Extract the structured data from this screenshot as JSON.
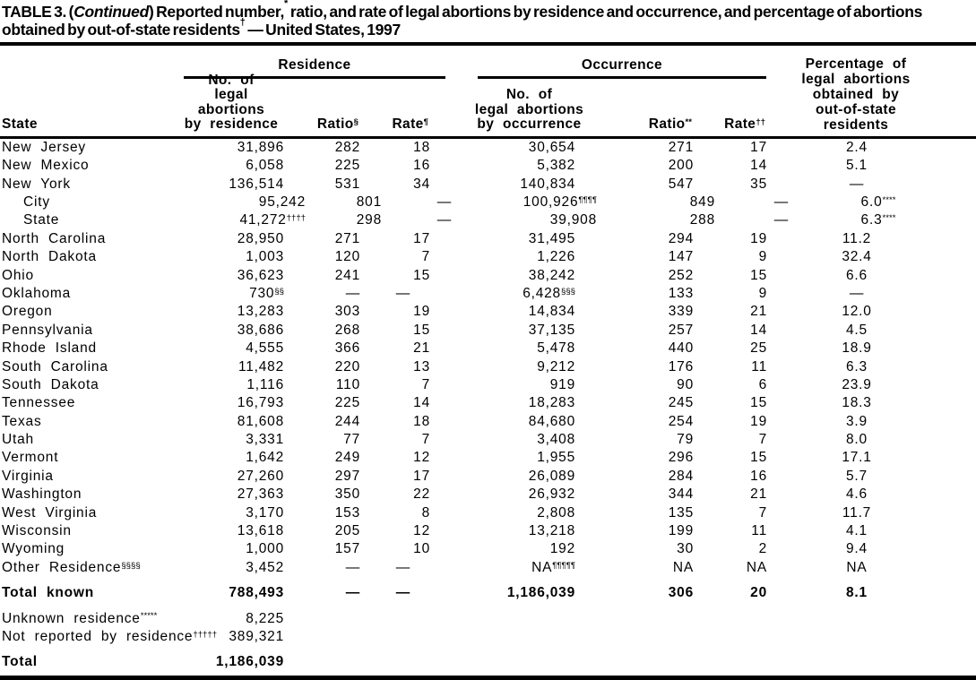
{
  "colors": {
    "background": "#ffffff",
    "text": "#000000",
    "rule": "#000000"
  },
  "title": {
    "prefix": "TABLE 3. (",
    "continued": "Continued",
    "after_continued": ") Reported number,",
    "sup1": "*",
    "line1_rest": " ratio, and rate of legal abortions by residence and occurrence, and percentage of abortions",
    "line2_start": "obtained by out-of-state residents",
    "sup2": "†",
    "line2_rest": " — United States, 1997"
  },
  "header": {
    "state": "State",
    "residence_group": "Residence",
    "occurrence_group": "Occurrence",
    "res_no_lines": [
      "No. of",
      "legal abortions",
      "by residence"
    ],
    "res_ratio": {
      "t": "Ratio",
      "sup": "§"
    },
    "res_rate": {
      "t": "Rate",
      "sup": "¶"
    },
    "occ_no_lines": [
      "No. of",
      "legal abortions",
      "by occurrence"
    ],
    "occ_ratio": {
      "t": "Ratio",
      "sup": "**"
    },
    "occ_rate": {
      "t": "Rate",
      "sup": "††"
    },
    "pct_lines": [
      "Percentage of",
      "legal abortions",
      "obtained by",
      "out-of-state",
      "residents"
    ]
  },
  "rows": [
    {
      "label": "New Jersey",
      "res_no": "31,896",
      "res_ratio": "282",
      "res_rate": "18",
      "occ_no": "30,654",
      "occ_ratio": "271",
      "occ_rate": "17",
      "pct": "2.4"
    },
    {
      "label": "New Mexico",
      "res_no": "6,058",
      "res_ratio": "225",
      "res_rate": "16",
      "occ_no": "5,382",
      "occ_ratio": "200",
      "occ_rate": "14",
      "pct": "5.1"
    },
    {
      "label": "New York",
      "res_no": "136,514",
      "res_ratio": "531",
      "res_rate": "34",
      "occ_no": "140,834",
      "occ_ratio": "547",
      "occ_rate": "35",
      "pct": "—"
    },
    {
      "label": "City",
      "indent": true,
      "res_no": "95,242",
      "res_ratio": "801",
      "res_rate": "—",
      "occ_no": "100,926",
      "occ_no_sup": "¶¶¶¶",
      "occ_ratio": "849",
      "occ_rate": "—",
      "pct": "6.0",
      "pct_sup": "****"
    },
    {
      "label": "State",
      "indent": true,
      "res_no": "41,272",
      "res_no_sup": "††††",
      "res_ratio": "298",
      "res_rate": "—",
      "occ_no": "39,908",
      "occ_ratio": "288",
      "occ_rate": "—",
      "pct": "6.3",
      "pct_sup": "****"
    },
    {
      "label": "North Carolina",
      "res_no": "28,950",
      "res_ratio": "271",
      "res_rate": "17",
      "occ_no": "31,495",
      "occ_ratio": "294",
      "occ_rate": "19",
      "pct": "11.2"
    },
    {
      "label": "North Dakota",
      "res_no": "1,003",
      "res_ratio": "120",
      "res_rate": "7",
      "occ_no": "1,226",
      "occ_ratio": "147",
      "occ_rate": "9",
      "pct": "32.4"
    },
    {
      "label": "Ohio",
      "res_no": "36,623",
      "res_ratio": "241",
      "res_rate": "15",
      "occ_no": "38,242",
      "occ_ratio": "252",
      "occ_rate": "15",
      "pct": "6.6"
    },
    {
      "label": "Oklahoma",
      "res_no": "730",
      "res_no_sup": "§§",
      "res_ratio": "—",
      "res_rate": "—",
      "dash_pair": true,
      "occ_no": "6,428",
      "occ_no_sup": "§§§",
      "occ_ratio": "133",
      "occ_rate": "9",
      "pct": "—"
    },
    {
      "label": "Oregon",
      "res_no": "13,283",
      "res_ratio": "303",
      "res_rate": "19",
      "occ_no": "14,834",
      "occ_ratio": "339",
      "occ_rate": "21",
      "pct": "12.0"
    },
    {
      "label": "Pennsylvania",
      "res_no": "38,686",
      "res_ratio": "268",
      "res_rate": "15",
      "occ_no": "37,135",
      "occ_ratio": "257",
      "occ_rate": "14",
      "pct": "4.5"
    },
    {
      "label": "Rhode Island",
      "res_no": "4,555",
      "res_ratio": "366",
      "res_rate": "21",
      "occ_no": "5,478",
      "occ_ratio": "440",
      "occ_rate": "25",
      "pct": "18.9"
    },
    {
      "label": "South Carolina",
      "res_no": "11,482",
      "res_ratio": "220",
      "res_rate": "13",
      "occ_no": "9,212",
      "occ_ratio": "176",
      "occ_rate": "11",
      "pct": "6.3"
    },
    {
      "label": "South Dakota",
      "res_no": "1,116",
      "res_ratio": "110",
      "res_rate": "7",
      "occ_no": "919",
      "occ_ratio": "90",
      "occ_rate": "6",
      "pct": "23.9"
    },
    {
      "label": "Tennessee",
      "res_no": "16,793",
      "res_ratio": "225",
      "res_rate": "14",
      "occ_no": "18,283",
      "occ_ratio": "245",
      "occ_rate": "15",
      "pct": "18.3"
    },
    {
      "label": "Texas",
      "res_no": "81,608",
      "res_ratio": "244",
      "res_rate": "18",
      "occ_no": "84,680",
      "occ_ratio": "254",
      "occ_rate": "19",
      "pct": "3.9"
    },
    {
      "label": "Utah",
      "res_no": "3,331",
      "res_ratio": "77",
      "res_rate": "7",
      "occ_no": "3,408",
      "occ_ratio": "79",
      "occ_rate": "7",
      "pct": "8.0"
    },
    {
      "label": "Vermont",
      "res_no": "1,642",
      "res_ratio": "249",
      "res_rate": "12",
      "occ_no": "1,955",
      "occ_ratio": "296",
      "occ_rate": "15",
      "pct": "17.1"
    },
    {
      "label": "Virginia",
      "res_no": "27,260",
      "res_ratio": "297",
      "res_rate": "17",
      "occ_no": "26,089",
      "occ_ratio": "284",
      "occ_rate": "16",
      "pct": "5.7"
    },
    {
      "label": "Washington",
      "res_no": "27,363",
      "res_ratio": "350",
      "res_rate": "22",
      "occ_no": "26,932",
      "occ_ratio": "344",
      "occ_rate": "21",
      "pct": "4.6"
    },
    {
      "label": "West Virginia",
      "res_no": "3,170",
      "res_ratio": "153",
      "res_rate": "8",
      "occ_no": "2,808",
      "occ_ratio": "135",
      "occ_rate": "7",
      "pct": "11.7"
    },
    {
      "label": "Wisconsin",
      "res_no": "13,618",
      "res_ratio": "205",
      "res_rate": "12",
      "occ_no": "13,218",
      "occ_ratio": "199",
      "occ_rate": "11",
      "pct": "4.1"
    },
    {
      "label": "Wyoming",
      "res_no": "1,000",
      "res_ratio": "157",
      "res_rate": "10",
      "occ_no": "192",
      "occ_ratio": "30",
      "occ_rate": "2",
      "pct": "9.4"
    },
    {
      "label": "Other Residence",
      "label_sup": "§§§§",
      "res_no": "3,452",
      "res_ratio": "—",
      "res_rate": "—",
      "dash_pair": true,
      "occ_no": "NA",
      "occ_no_sup": "¶¶¶¶¶",
      "occ_ratio": "NA",
      "occ_rate": "NA",
      "pct": "NA"
    },
    {
      "label": "Total known",
      "bold": true,
      "gap": true,
      "res_no": "788,493",
      "res_ratio": "—",
      "res_rate": "—",
      "dash_pair": true,
      "occ_no": "1,186,039",
      "occ_ratio": "306",
      "occ_rate": "20",
      "pct": "8.1"
    },
    {
      "label": "Unknown residence",
      "label_sup": "*****",
      "gap": true,
      "res_no": "8,225"
    },
    {
      "label": "Not reported by residence",
      "label_sup": "†††††",
      "res_no": "389,321"
    },
    {
      "label": "Total",
      "bold": true,
      "gap": true,
      "res_no": "1,186,039"
    }
  ]
}
